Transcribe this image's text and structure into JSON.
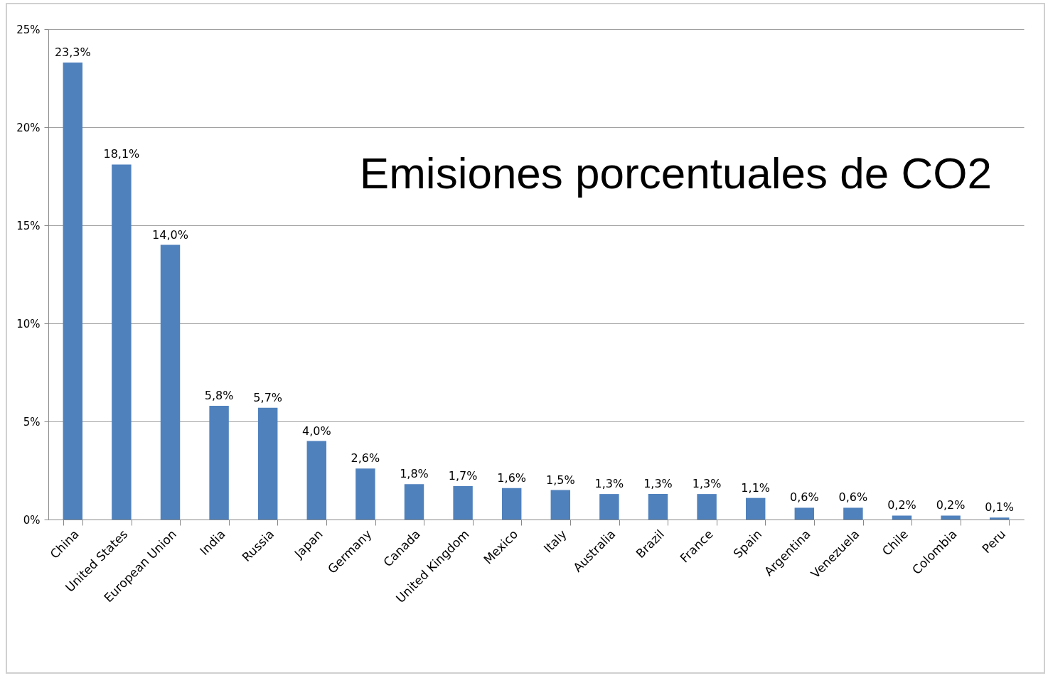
{
  "chart_data": {
    "type": "bar",
    "title": "Emisiones porcentuales de CO2",
    "categories": [
      "China",
      "United States",
      "European Union",
      "India",
      "Russia",
      "Japan",
      "Germany",
      "Canada",
      "United Kingdom",
      "Mexico",
      "Italy",
      "Australia",
      "Brazil",
      "France",
      "Spain",
      "Argentina",
      "Venezuela",
      "Chile",
      "Colombia",
      "Peru"
    ],
    "values": [
      23.3,
      18.1,
      14.0,
      5.8,
      5.7,
      4.0,
      2.6,
      1.8,
      1.7,
      1.6,
      1.5,
      1.3,
      1.3,
      1.3,
      1.1,
      0.6,
      0.6,
      0.2,
      0.2,
      0.1
    ],
    "value_labels": [
      "23,3%",
      "18,1%",
      "14,0%",
      "5,8%",
      "5,7%",
      "4,0%",
      "2,6%",
      "1,8%",
      "1,7%",
      "1,6%",
      "1,5%",
      "1,3%",
      "1,3%",
      "1,3%",
      "1,1%",
      "0,6%",
      "0,6%",
      "0,2%",
      "0,2%",
      "0,1%"
    ],
    "color": "#4f81bd",
    "ylim": [
      0,
      25
    ],
    "yticks": [
      {
        "value": 0,
        "label": "0%"
      },
      {
        "value": 5,
        "label": "5%"
      },
      {
        "value": 10,
        "label": "10%"
      },
      {
        "value": 15,
        "label": "15%"
      },
      {
        "value": 20,
        "label": "20%"
      },
      {
        "value": 25,
        "label": "25%"
      }
    ],
    "grid": "y"
  }
}
